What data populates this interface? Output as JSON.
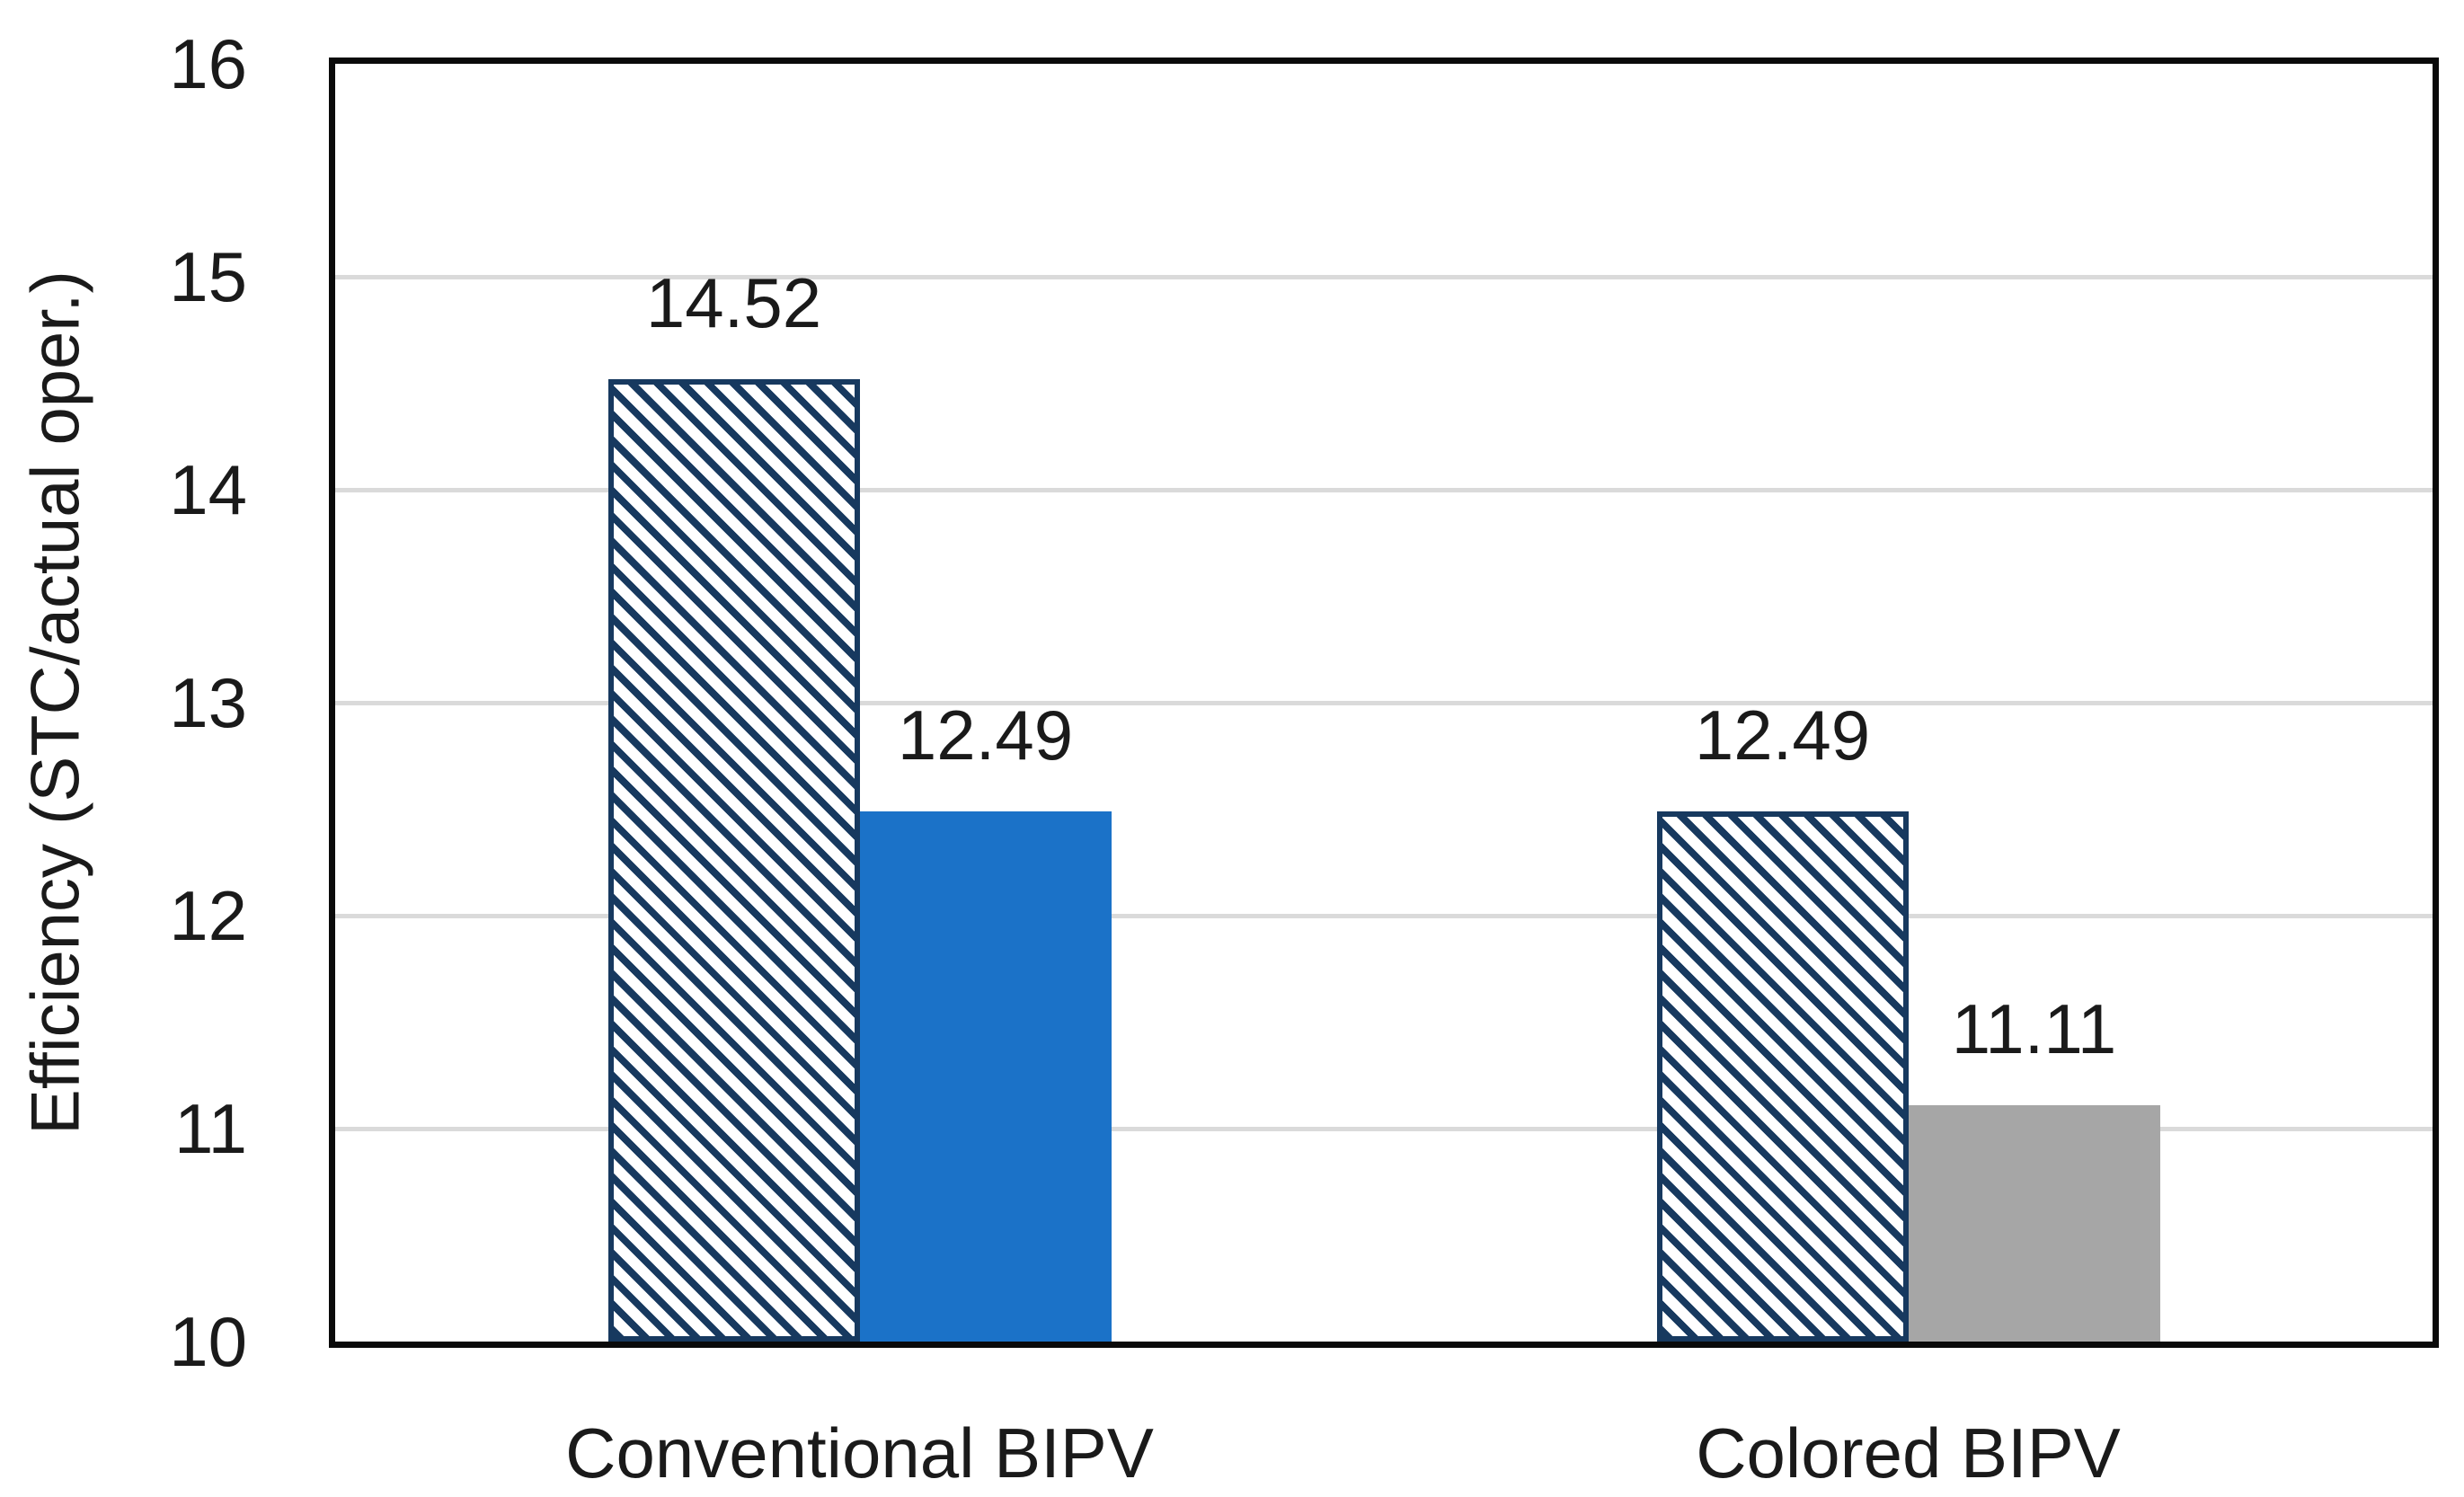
{
  "chart_data": {
    "type": "bar",
    "title": "",
    "xlabel": "",
    "ylabel": "Efficiency (STC/actual oper.)",
    "ylim": [
      10,
      16
    ],
    "yticks": [
      "10",
      "11",
      "12",
      "13",
      "14",
      "15",
      "16"
    ],
    "grid": true,
    "legend_position": "none",
    "categories": [
      "Conventional BIPV",
      "Colored BIPV"
    ],
    "series": [
      {
        "style": "hatched",
        "values": [
          14.52,
          12.49
        ],
        "data_labels": [
          "14.52",
          "12.49"
        ]
      },
      {
        "style": "solid",
        "values": [
          12.49,
          11.11
        ],
        "data_labels": [
          "12.49",
          "11.11"
        ]
      }
    ],
    "colors": {
      "hatch_stripe": "#17395f",
      "hatch_background": "#ffffff",
      "solid_fills": [
        "#1b72c8",
        "#a6a6a6"
      ],
      "gridline": "#dadada",
      "frame": "#0a0a0a",
      "text": "#1a1a1a"
    }
  }
}
